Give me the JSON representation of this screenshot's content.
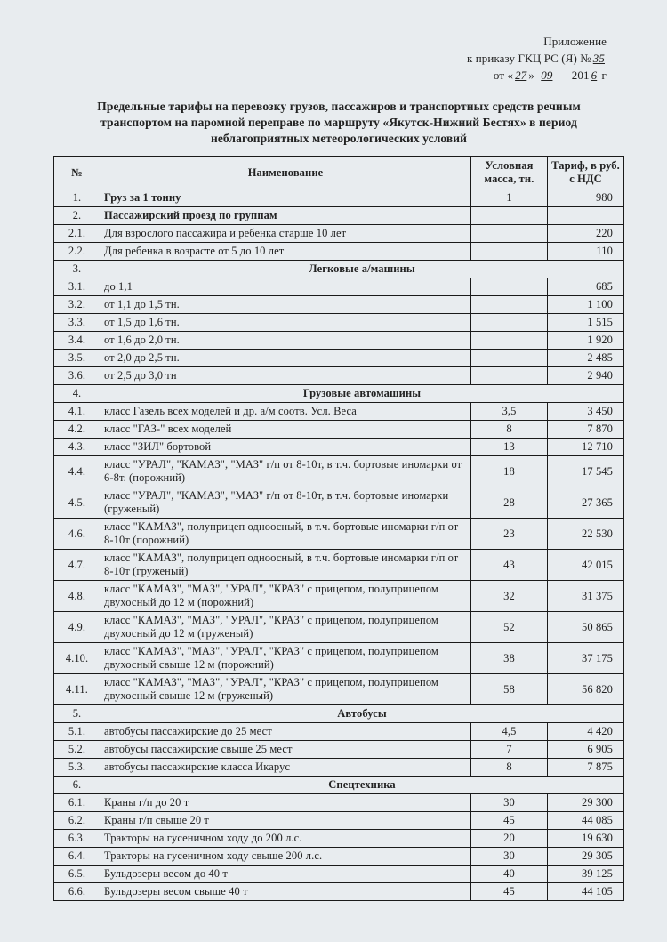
{
  "header": {
    "line1": "Приложение",
    "line2_a": "к приказу ГКЦ РС (Я) №",
    "line2_hw": "35",
    "line3_a": "от «",
    "line3_d": "27",
    "line3_b": "» ",
    "line3_m": "09",
    "line3_c": " 201",
    "line3_y": "6",
    "line3_e": " г"
  },
  "title": "Предельные тарифы на перевозку грузов, пассажиров и транспортных средств речным транспортом на паромной переправе по маршруту «Якутск-Нижний Бестях» в период неблагоприятных метеорологических условий",
  "columns": {
    "num": "№",
    "name": "Наименование",
    "mass": "Условная масса, тн.",
    "tarif": "Тариф, в руб. с НДС"
  },
  "rows": [
    {
      "n": "1.",
      "name": "Груз за 1 тонну",
      "mass": "1",
      "tarif": "980",
      "bold": true,
      "nameAlign": "left"
    },
    {
      "n": "2.",
      "name": "Пассажирский проезд по группам",
      "mass": "",
      "tarif": "",
      "bold": true,
      "nameAlign": "left"
    },
    {
      "n": "2.1.",
      "name": "Для взрослого пассажира и ребенка старше 10 лет",
      "mass": "",
      "tarif": "220"
    },
    {
      "n": "2.2.",
      "name": "Для ребенка в возрасте от 5 до 10 лет",
      "mass": "",
      "tarif": "110"
    },
    {
      "n": "3.",
      "name": "Легковые а/машины",
      "mass": "",
      "tarif": "",
      "section": true
    },
    {
      "n": "3.1.",
      "name": "до 1,1",
      "mass": "",
      "tarif": "685"
    },
    {
      "n": "3.2.",
      "name": "от 1,1 до 1,5 тн.",
      "mass": "",
      "tarif": "1 100"
    },
    {
      "n": "3.3.",
      "name": "от 1,5 до 1,6 тн.",
      "mass": "",
      "tarif": "1 515"
    },
    {
      "n": "3.4.",
      "name": "от 1,6 до 2,0 тн.",
      "mass": "",
      "tarif": "1 920"
    },
    {
      "n": "3.5.",
      "name": "от 2,0 до 2,5 тн.",
      "mass": "",
      "tarif": "2 485"
    },
    {
      "n": "3.6.",
      "name": "от 2,5 до 3,0 тн",
      "mass": "",
      "tarif": "2 940"
    },
    {
      "n": "4.",
      "name": "Грузовые автомашины",
      "mass": "",
      "tarif": "",
      "section": true
    },
    {
      "n": "4.1.",
      "name": "класс Газель всех моделей и др. а/м соотв. Усл. Веса",
      "mass": "3,5",
      "tarif": "3 450"
    },
    {
      "n": "4.2.",
      "name": "класс \"ГАЗ-\" всех моделей",
      "mass": "8",
      "tarif": "7 870"
    },
    {
      "n": "4.3.",
      "name": "класс \"ЗИЛ\" бортовой",
      "mass": "13",
      "tarif": "12 710"
    },
    {
      "n": "4.4.",
      "name": "класс \"УРАЛ\", \"КАМАЗ\", \"МАЗ\" г/п от 8-10т, в т.ч. бортовые иномарки от 6-8т. (порожний)",
      "mass": "18",
      "tarif": "17 545",
      "tall": true
    },
    {
      "n": "4.5.",
      "name": "класс \"УРАЛ\", \"КАМАЗ\", \"МАЗ\" г/п от 8-10т, в т.ч. бортовые иномарки (груженый)",
      "mass": "28",
      "tarif": "27 365",
      "tall": true
    },
    {
      "n": "4.6.",
      "name": "класс \"КАМАЗ\", полуприцеп одноосный, в т.ч. бортовые иномарки г/п от 8-10т (порожний)",
      "mass": "23",
      "tarif": "22 530",
      "tall": true
    },
    {
      "n": "4.7.",
      "name": "класс \"КАМАЗ\", полуприцеп одноосный, в т.ч. бортовые иномарки г/п от 8-10т (груженый)",
      "mass": "43",
      "tarif": "42 015",
      "tall": true
    },
    {
      "n": "4.8.",
      "name": "класс \"КАМАЗ\", \"МАЗ\", \"УРАЛ\", \"КРАЗ\" с прицепом, полуприцепом  двухосный до 12 м (порожний)",
      "mass": "32",
      "tarif": "31 375",
      "tall": true
    },
    {
      "n": "4.9.",
      "name": "класс \"КАМАЗ\", \"МАЗ\", \"УРАЛ\", \"КРАЗ\" с прицепом, полуприцепом  двухосный до 12 м (груженый)",
      "mass": "52",
      "tarif": "50 865",
      "tall": true
    },
    {
      "n": "4.10.",
      "name": "класс \"КАМАЗ\", \"МАЗ\", \"УРАЛ\", \"КРАЗ\" с прицепом, полуприцепом  двухосный свыше 12 м (порожний)",
      "mass": "38",
      "tarif": "37 175",
      "tall": true
    },
    {
      "n": "4.11.",
      "name": "класс \"КАМАЗ\", \"МАЗ\", \"УРАЛ\", \"КРАЗ\" с прицепом, полуприцепом  двухосный свыше 12 м (груженый)",
      "mass": "58",
      "tarif": "56 820",
      "tall": true
    },
    {
      "n": "5.",
      "name": "Автобусы",
      "mass": "",
      "tarif": "",
      "section": true
    },
    {
      "n": "5.1.",
      "name": "автобусы пассажирские до 25 мест",
      "mass": "4,5",
      "tarif": "4 420"
    },
    {
      "n": "5.2.",
      "name": "автобусы пассажирские свыше 25 мест",
      "mass": "7",
      "tarif": "6 905"
    },
    {
      "n": "5.3.",
      "name": "автобусы пассажирские класса Икарус",
      "mass": "8",
      "tarif": "7 875"
    },
    {
      "n": "6.",
      "name": "Спецтехника",
      "mass": "",
      "tarif": "",
      "section": true
    },
    {
      "n": "6.1.",
      "name": "Краны г/п до 20 т",
      "mass": "30",
      "tarif": "29 300"
    },
    {
      "n": "6.2.",
      "name": "Краны г/п свыше 20 т",
      "mass": "45",
      "tarif": "44 085"
    },
    {
      "n": "6.3.",
      "name": "Тракторы на гусеничном ходу до 200 л.с.",
      "mass": "20",
      "tarif": "19 630"
    },
    {
      "n": "6.4.",
      "name": "Тракторы на гусеничном ходу свыше 200 л.с.",
      "mass": "30",
      "tarif": "29 305"
    },
    {
      "n": "6.5.",
      "name": "Бульдозеры весом до 40 т",
      "mass": "40",
      "tarif": "39 125"
    },
    {
      "n": "6.6.",
      "name": "Бульдозеры весом свыше 40 т",
      "mass": "45",
      "tarif": "44 105"
    }
  ]
}
